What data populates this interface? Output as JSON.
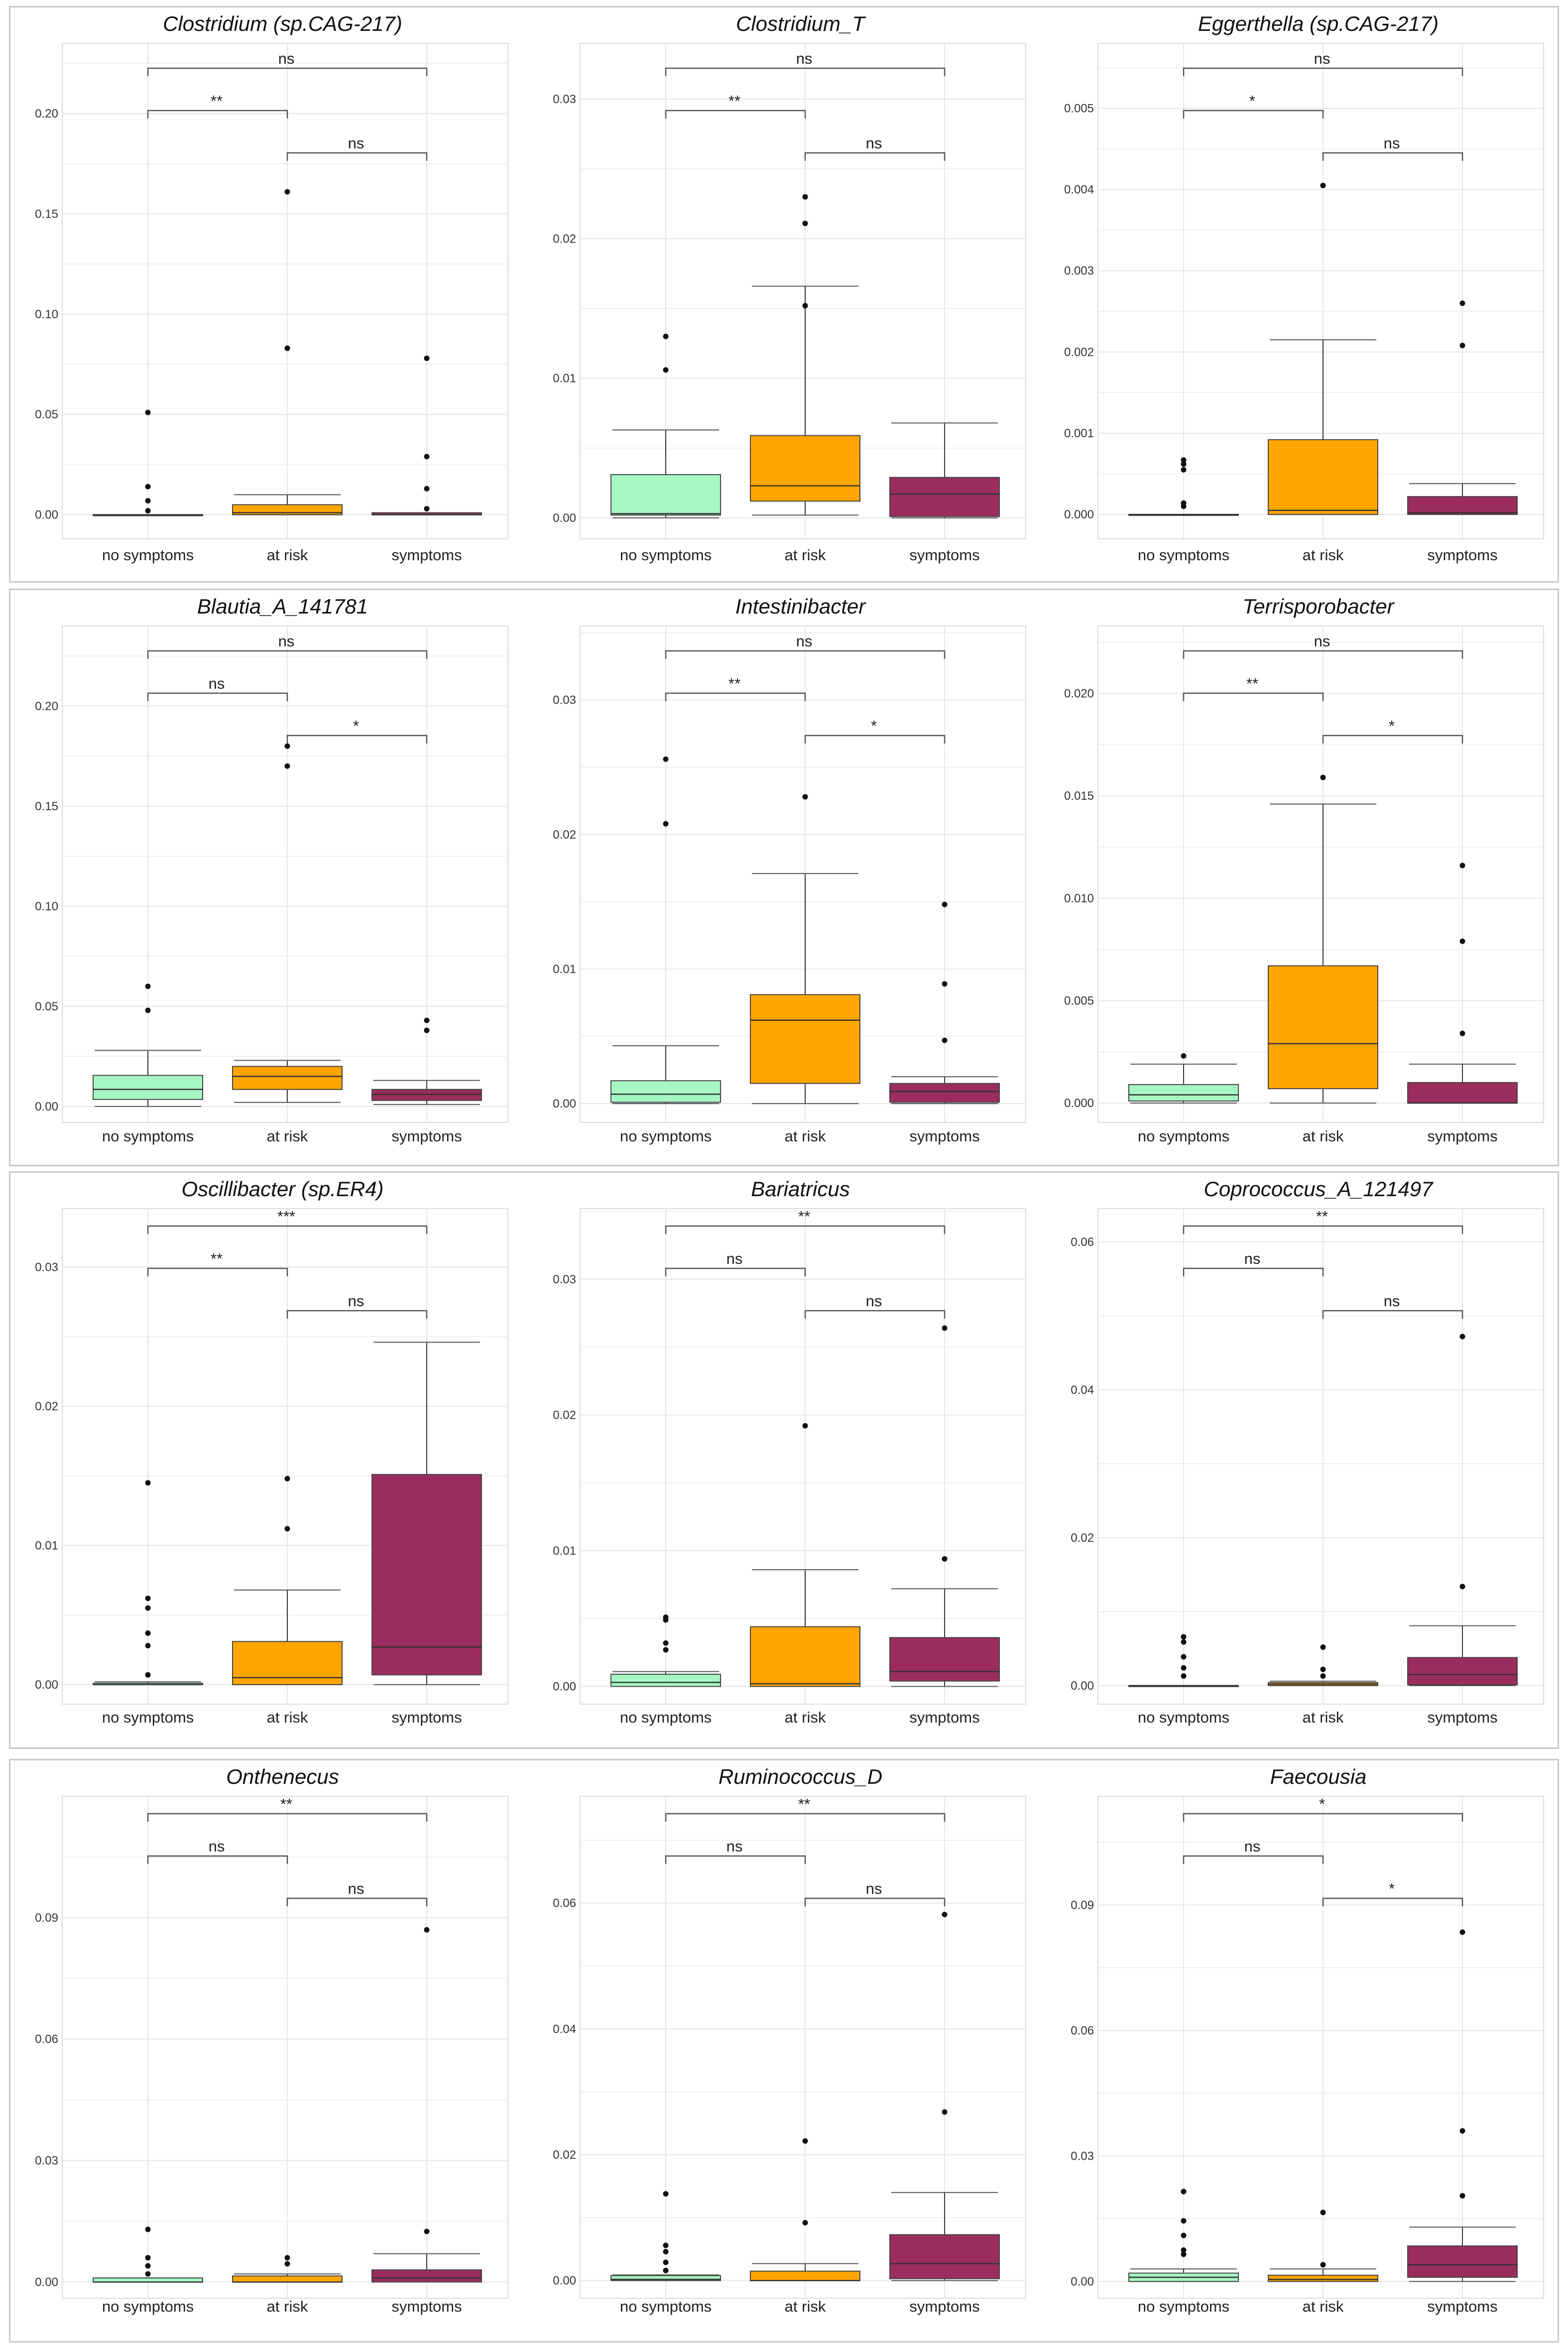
{
  "figure": {
    "colors": {
      "no symptoms": "#a6f7c4",
      "at risk": "#ffa500",
      "symptoms": "#9b2d5e",
      "grid": "#e6e6e6",
      "frame": "#dcdcdc"
    }
  },
  "chart_data": [
    {
      "type": "box",
      "title": "Clostridium (sp.CAG-217)",
      "categories": [
        "no symptoms",
        "at risk",
        "symptoms"
      ],
      "ylim": [
        -0.012,
        0.235
      ],
      "yticks": [
        "0.00",
        "0.05",
        "0.10",
        "0.15",
        "0.20"
      ],
      "ytick_values": [
        0,
        0.05,
        0.1,
        0.15,
        0.2
      ],
      "boxes": [
        {
          "q1": 0,
          "median": 0,
          "q3": 0,
          "whislo": 0,
          "whishi": 0,
          "fliers": [
            0.051,
            0.014,
            0.007,
            0.002
          ]
        },
        {
          "q1": 0,
          "median": 0.001,
          "q3": 0.005,
          "whislo": 0,
          "whishi": 0.01,
          "fliers": [
            0.161,
            0.083
          ]
        },
        {
          "q1": 0,
          "median": 0,
          "q3": 0.001,
          "whislo": 0,
          "whishi": 0.001,
          "fliers": [
            0.078,
            0.029,
            0.013,
            0.003
          ]
        }
      ],
      "comparisons": [
        {
          "groups": [
            "no symptoms",
            "symptoms"
          ],
          "label": "ns"
        },
        {
          "groups": [
            "no symptoms",
            "at risk"
          ],
          "label": "**"
        },
        {
          "groups": [
            "at risk",
            "symptoms"
          ],
          "label": "ns"
        }
      ]
    },
    {
      "type": "box",
      "title": "Clostridium_T",
      "categories": [
        "no symptoms",
        "at risk",
        "symptoms"
      ],
      "ylim": [
        -0.0015,
        0.034
      ],
      "yticks": [
        "0.00",
        "0.01",
        "0.02",
        "0.03"
      ],
      "ytick_values": [
        0,
        0.01,
        0.02,
        0.03
      ],
      "boxes": [
        {
          "q1": 0.0002,
          "median": 0.0003,
          "q3": 0.0031,
          "whislo": 0,
          "whishi": 0.0063,
          "fliers": [
            0.013,
            0.0106
          ]
        },
        {
          "q1": 0.0012,
          "median": 0.0023,
          "q3": 0.0059,
          "whislo": 0.0002,
          "whishi": 0.0166,
          "fliers": [
            0.023,
            0.0211,
            0.0152
          ]
        },
        {
          "q1": 0.0001,
          "median": 0.0017,
          "q3": 0.0029,
          "whislo": 0,
          "whishi": 0.0068,
          "fliers": []
        }
      ],
      "comparisons": [
        {
          "groups": [
            "no symptoms",
            "symptoms"
          ],
          "label": "ns"
        },
        {
          "groups": [
            "no symptoms",
            "at risk"
          ],
          "label": "**"
        },
        {
          "groups": [
            "at risk",
            "symptoms"
          ],
          "label": "ns"
        }
      ]
    },
    {
      "type": "box",
      "title": "Eggerthella (sp.CAG-217)",
      "categories": [
        "no symptoms",
        "at risk",
        "symptoms"
      ],
      "ylim": [
        -0.0003,
        0.0058
      ],
      "yticks": [
        "0.000",
        "0.001",
        "0.002",
        "0.003",
        "0.004",
        "0.005"
      ],
      "ytick_values": [
        0,
        0.001,
        0.002,
        0.003,
        0.004,
        0.005
      ],
      "boxes": [
        {
          "q1": 0,
          "median": 0,
          "q3": 0,
          "whislo": 0,
          "whishi": 0,
          "fliers": [
            0.00067,
            0.00062,
            0.00055,
            0.00014,
            0.0001
          ]
        },
        {
          "q1": 0,
          "median": 5e-05,
          "q3": 0.00092,
          "whislo": 0,
          "whishi": 0.00215,
          "fliers": [
            0.00405
          ]
        },
        {
          "q1": 0,
          "median": 2e-05,
          "q3": 0.00022,
          "whislo": 0,
          "whishi": 0.00038,
          "fliers": [
            0.0026,
            0.00208
          ]
        }
      ],
      "comparisons": [
        {
          "groups": [
            "no symptoms",
            "symptoms"
          ],
          "label": "ns"
        },
        {
          "groups": [
            "no symptoms",
            "at risk"
          ],
          "label": "*"
        },
        {
          "groups": [
            "at risk",
            "symptoms"
          ],
          "label": "ns"
        }
      ]
    },
    {
      "type": "box",
      "title": "Blautia_A_141781",
      "categories": [
        "no symptoms",
        "at risk",
        "symptoms"
      ],
      "ylim": [
        -0.008,
        0.24
      ],
      "yticks": [
        "0.00",
        "0.05",
        "0.10",
        "0.15",
        "0.20"
      ],
      "ytick_values": [
        0,
        0.05,
        0.1,
        0.15,
        0.2
      ],
      "boxes": [
        {
          "q1": 0.0035,
          "median": 0.0085,
          "q3": 0.0155,
          "whislo": 0,
          "whishi": 0.028,
          "fliers": [
            0.06,
            0.048
          ]
        },
        {
          "q1": 0.0085,
          "median": 0.015,
          "q3": 0.02,
          "whislo": 0.002,
          "whishi": 0.023,
          "fliers": [
            0.18,
            0.17
          ]
        },
        {
          "q1": 0.003,
          "median": 0.006,
          "q3": 0.0085,
          "whislo": 0.001,
          "whishi": 0.013,
          "fliers": [
            0.043,
            0.038
          ]
        }
      ],
      "comparisons": [
        {
          "groups": [
            "no symptoms",
            "symptoms"
          ],
          "label": "ns"
        },
        {
          "groups": [
            "no symptoms",
            "at risk"
          ],
          "label": "ns"
        },
        {
          "groups": [
            "at risk",
            "symptoms"
          ],
          "label": "*"
        }
      ]
    },
    {
      "type": "box",
      "title": "Intestinibacter",
      "categories": [
        "no symptoms",
        "at risk",
        "symptoms"
      ],
      "ylim": [
        -0.0014,
        0.0355
      ],
      "yticks": [
        "0.00",
        "0.01",
        "0.02",
        "0.03"
      ],
      "ytick_values": [
        0,
        0.01,
        0.02,
        0.03
      ],
      "boxes": [
        {
          "q1": 0.0001,
          "median": 0.0007,
          "q3": 0.0017,
          "whislo": 0,
          "whishi": 0.0043,
          "fliers": [
            0.0256,
            0.0208
          ]
        },
        {
          "q1": 0.0015,
          "median": 0.0062,
          "q3": 0.0081,
          "whislo": 0,
          "whishi": 0.0171,
          "fliers": [
            0.0228
          ]
        },
        {
          "q1": 0.0001,
          "median": 0.0009,
          "q3": 0.0015,
          "whislo": 0,
          "whishi": 0.002,
          "fliers": [
            0.0148,
            0.0089,
            0.0047
          ]
        }
      ],
      "comparisons": [
        {
          "groups": [
            "no symptoms",
            "symptoms"
          ],
          "label": "ns"
        },
        {
          "groups": [
            "no symptoms",
            "at risk"
          ],
          "label": "**"
        },
        {
          "groups": [
            "at risk",
            "symptoms"
          ],
          "label": "*"
        }
      ]
    },
    {
      "type": "box",
      "title": "Terrisporobacter",
      "categories": [
        "no symptoms",
        "at risk",
        "symptoms"
      ],
      "ylim": [
        -0.00095,
        0.0233
      ],
      "yticks": [
        "0.000",
        "0.005",
        "0.010",
        "0.015",
        "0.020"
      ],
      "ytick_values": [
        0,
        0.005,
        0.01,
        0.015,
        0.02
      ],
      "boxes": [
        {
          "q1": 0.0001,
          "median": 0.0004,
          "q3": 0.0009,
          "whislo": 0,
          "whishi": 0.0019,
          "fliers": [
            0.0023
          ]
        },
        {
          "q1": 0.0007,
          "median": 0.0029,
          "q3": 0.0067,
          "whislo": 0,
          "whishi": 0.0146,
          "fliers": [
            0.0159
          ]
        },
        {
          "q1": 0,
          "median": 0,
          "q3": 0.001,
          "whislo": 0,
          "whishi": 0.0019,
          "fliers": [
            0.0116,
            0.0079,
            0.0034
          ]
        }
      ],
      "comparisons": [
        {
          "groups": [
            "no symptoms",
            "symptoms"
          ],
          "label": "ns"
        },
        {
          "groups": [
            "no symptoms",
            "at risk"
          ],
          "label": "**"
        },
        {
          "groups": [
            "at risk",
            "symptoms"
          ],
          "label": "*"
        }
      ]
    },
    {
      "type": "box",
      "title": "Oscillibacter (sp.ER4)",
      "categories": [
        "no symptoms",
        "at risk",
        "symptoms"
      ],
      "ylim": [
        -0.0014,
        0.0342
      ],
      "yticks": [
        "0.00",
        "0.01",
        "0.02",
        "0.03"
      ],
      "ytick_values": [
        0,
        0.01,
        0.02,
        0.03
      ],
      "boxes": [
        {
          "q1": 0,
          "median": 0,
          "q3": 0.0001,
          "whislo": 0,
          "whishi": 0.0002,
          "fliers": [
            0.0145,
            0.0062,
            0.0055,
            0.0037,
            0.0028,
            0.0007
          ]
        },
        {
          "q1": 0,
          "median": 0.0005,
          "q3": 0.0031,
          "whislo": 0,
          "whishi": 0.0068,
          "fliers": [
            0.0148,
            0.0112
          ]
        },
        {
          "q1": 0.0007,
          "median": 0.0027,
          "q3": 0.0151,
          "whislo": 0,
          "whishi": 0.0246,
          "fliers": []
        }
      ],
      "comparisons": [
        {
          "groups": [
            "no symptoms",
            "symptoms"
          ],
          "label": "***"
        },
        {
          "groups": [
            "no symptoms",
            "at risk"
          ],
          "label": "**"
        },
        {
          "groups": [
            "at risk",
            "symptoms"
          ],
          "label": "ns"
        }
      ]
    },
    {
      "type": "box",
      "title": "Bariatricus",
      "categories": [
        "no symptoms",
        "at risk",
        "symptoms"
      ],
      "ylim": [
        -0.0013,
        0.0352
      ],
      "yticks": [
        "0.00",
        "0.01",
        "0.02",
        "0.03"
      ],
      "ytick_values": [
        0,
        0.01,
        0.02,
        0.03
      ],
      "boxes": [
        {
          "q1": 0,
          "median": 0.0003,
          "q3": 0.0009,
          "whislo": 0,
          "whishi": 0.0011,
          "fliers": [
            0.0051,
            0.0049,
            0.0032,
            0.0027
          ]
        },
        {
          "q1": 0,
          "median": 0.0002,
          "q3": 0.0044,
          "whislo": 0,
          "whishi": 0.0086,
          "fliers": [
            0.0192
          ]
        },
        {
          "q1": 0.0004,
          "median": 0.0011,
          "q3": 0.0036,
          "whislo": 0,
          "whishi": 0.0072,
          "fliers": [
            0.0264,
            0.0094
          ]
        }
      ],
      "comparisons": [
        {
          "groups": [
            "no symptoms",
            "symptoms"
          ],
          "label": "**"
        },
        {
          "groups": [
            "no symptoms",
            "at risk"
          ],
          "label": "ns"
        },
        {
          "groups": [
            "at risk",
            "symptoms"
          ],
          "label": "ns"
        }
      ]
    },
    {
      "type": "box",
      "title": "Coprococcus_A_121497",
      "categories": [
        "no symptoms",
        "at risk",
        "symptoms"
      ],
      "ylim": [
        -0.0025,
        0.0645
      ],
      "yticks": [
        "0.00",
        "0.02",
        "0.04",
        "0.06"
      ],
      "ytick_values": [
        0,
        0.02,
        0.04,
        0.06
      ],
      "boxes": [
        {
          "q1": 0,
          "median": 0,
          "q3": 0,
          "whislo": 0,
          "whishi": 0,
          "fliers": [
            0.0066,
            0.0059,
            0.0039,
            0.0024,
            0.0013
          ]
        },
        {
          "q1": 0,
          "median": 0.0002,
          "q3": 0.0004,
          "whislo": 0,
          "whishi": 0.0006,
          "fliers": [
            0.0052,
            0.0022,
            0.0013
          ]
        },
        {
          "q1": 0.0001,
          "median": 0.0015,
          "q3": 0.0038,
          "whislo": 0,
          "whishi": 0.0081,
          "fliers": [
            0.0472,
            0.0134
          ]
        }
      ],
      "comparisons": [
        {
          "groups": [
            "no symptoms",
            "symptoms"
          ],
          "label": "**"
        },
        {
          "groups": [
            "no symptoms",
            "at risk"
          ],
          "label": "ns"
        },
        {
          "groups": [
            "at risk",
            "symptoms"
          ],
          "label": "ns"
        }
      ]
    },
    {
      "type": "box",
      "title": "Onthenecus",
      "categories": [
        "no symptoms",
        "at risk",
        "symptoms"
      ],
      "ylim": [
        -0.004,
        0.12
      ],
      "yticks": [
        "0.00",
        "0.03",
        "0.06",
        "0.09"
      ],
      "ytick_values": [
        0,
        0.03,
        0.06,
        0.09
      ],
      "boxes": [
        {
          "q1": 0,
          "median": 0,
          "q3": 0.001,
          "whislo": 0,
          "whishi": 0.001,
          "fliers": [
            0.013,
            0.006,
            0.004,
            0.002
          ]
        },
        {
          "q1": 0,
          "median": 0,
          "q3": 0.0015,
          "whislo": 0,
          "whishi": 0.002,
          "fliers": [
            0.006,
            0.0045
          ]
        },
        {
          "q1": 0,
          "median": 0.001,
          "q3": 0.003,
          "whislo": 0,
          "whishi": 0.007,
          "fliers": [
            0.087,
            0.0125
          ]
        }
      ],
      "comparisons": [
        {
          "groups": [
            "no symptoms",
            "symptoms"
          ],
          "label": "**"
        },
        {
          "groups": [
            "no symptoms",
            "at risk"
          ],
          "label": "ns"
        },
        {
          "groups": [
            "at risk",
            "symptoms"
          ],
          "label": "ns"
        }
      ]
    },
    {
      "type": "box",
      "title": "Ruminococcus_D",
      "categories": [
        "no symptoms",
        "at risk",
        "symptoms"
      ],
      "ylim": [
        -0.0028,
        0.077
      ],
      "yticks": [
        "0.00",
        "0.02",
        "0.04",
        "0.06"
      ],
      "ytick_values": [
        0,
        0.02,
        0.04,
        0.06
      ],
      "boxes": [
        {
          "q1": 0,
          "median": 0.0002,
          "q3": 0.0008,
          "whislo": 0,
          "whishi": 0.0009,
          "fliers": [
            0.0138,
            0.0056,
            0.0046,
            0.0029,
            0.0016
          ]
        },
        {
          "q1": 0,
          "median": 0,
          "q3": 0.0015,
          "whislo": 0,
          "whishi": 0.0027,
          "fliers": [
            0.0222,
            0.0092
          ]
        },
        {
          "q1": 0.0003,
          "median": 0.0027,
          "q3": 0.0073,
          "whislo": 0,
          "whishi": 0.014,
          "fliers": [
            0.0582,
            0.0268
          ]
        }
      ],
      "comparisons": [
        {
          "groups": [
            "no symptoms",
            "symptoms"
          ],
          "label": "**"
        },
        {
          "groups": [
            "no symptoms",
            "at risk"
          ],
          "label": "ns"
        },
        {
          "groups": [
            "at risk",
            "symptoms"
          ],
          "label": "ns"
        }
      ]
    },
    {
      "type": "box",
      "title": "Faecousia",
      "categories": [
        "no symptoms",
        "at risk",
        "symptoms"
      ],
      "ylim": [
        -0.004,
        0.116
      ],
      "yticks": [
        "0.00",
        "0.03",
        "0.06",
        "0.09"
      ],
      "ytick_values": [
        0,
        0.03,
        0.06,
        0.09
      ],
      "boxes": [
        {
          "q1": 0,
          "median": 0.001,
          "q3": 0.002,
          "whislo": 0,
          "whishi": 0.003,
          "fliers": [
            0.0215,
            0.0145,
            0.011,
            0.0075,
            0.0065
          ]
        },
        {
          "q1": 0,
          "median": 0.0005,
          "q3": 0.0015,
          "whislo": 0,
          "whishi": 0.003,
          "fliers": [
            0.0165,
            0.004
          ]
        },
        {
          "q1": 0.001,
          "median": 0.004,
          "q3": 0.0085,
          "whislo": 0,
          "whishi": 0.013,
          "fliers": [
            0.0835,
            0.036,
            0.0205
          ]
        }
      ],
      "comparisons": [
        {
          "groups": [
            "no symptoms",
            "symptoms"
          ],
          "label": "*"
        },
        {
          "groups": [
            "no symptoms",
            "at risk"
          ],
          "label": "ns"
        },
        {
          "groups": [
            "at risk",
            "symptoms"
          ],
          "label": "*"
        }
      ]
    }
  ]
}
